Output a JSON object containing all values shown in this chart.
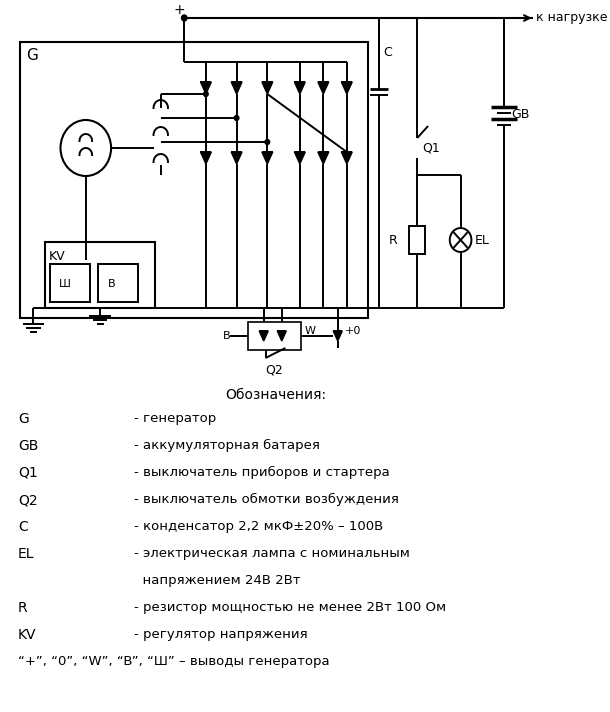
{
  "bg_color": "#ffffff",
  "fig_width": 6.1,
  "fig_height": 7.12,
  "dpi": 100,
  "legend_title": "Обозначения:",
  "legend_rows": [
    [
      "G",
      "- генератор"
    ],
    [
      "GB",
      "- аккумуляторная батарея"
    ],
    [
      "Q1",
      "- выключатель приборов и стартера"
    ],
    [
      "Q2",
      "- выключатель обмотки возбуждения"
    ],
    [
      "C",
      "- конденсатор 2,2 мкФ±20% – 100В"
    ],
    [
      "EL",
      "- электрическая лампа с номинальным"
    ],
    [
      "",
      "  напряжением 24В 2Вт"
    ],
    [
      "R",
      "- резистор мощностью не менее 2Вт 100 Ом"
    ],
    [
      "KV",
      "- регулятор напряжения"
    ],
    [
      "“+”, “0”, “W”, “B”, “Ш” – выводы генератора",
      ""
    ]
  ]
}
